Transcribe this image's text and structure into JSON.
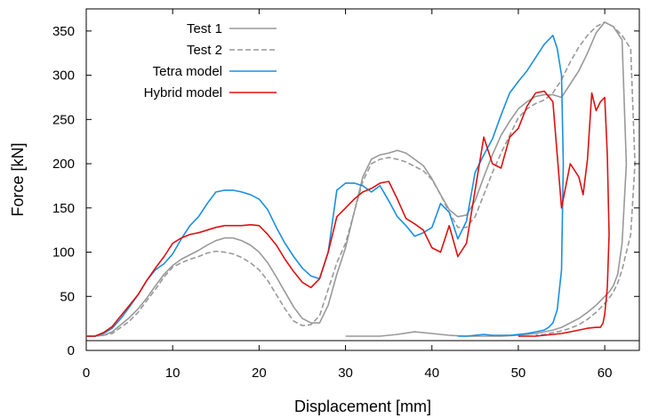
{
  "chart_data": {
    "type": "line",
    "title": "",
    "xlabel": "Displacement [mm]",
    "ylabel": "Force [kN]",
    "xlim": [
      0,
      64
    ],
    "ylim": [
      0,
      375
    ],
    "xticks": [
      0,
      10,
      20,
      30,
      40,
      50,
      60
    ],
    "yticks": [
      0,
      50,
      100,
      150,
      200,
      250,
      300,
      350
    ],
    "grid": false,
    "legend_position": "top-left",
    "series": [
      {
        "name": "Test 1",
        "color": "#999999",
        "dash": "solid",
        "x": [
          0,
          1,
          2,
          3,
          4,
          5,
          6,
          7,
          8,
          9,
          10,
          11,
          12,
          13,
          14,
          15,
          16,
          17,
          18,
          19,
          20,
          21,
          22,
          23,
          24,
          25,
          26,
          27,
          28,
          29,
          30,
          31,
          32,
          33,
          34,
          35,
          36,
          37,
          38,
          39,
          40,
          41,
          42,
          43,
          44,
          45,
          46,
          47,
          48,
          49,
          50,
          51,
          52,
          53,
          54,
          55,
          56,
          57,
          58,
          59,
          60,
          61,
          62,
          62.5,
          62,
          61.5,
          61,
          60.5,
          60,
          59,
          58,
          57,
          56,
          55,
          54,
          53,
          52,
          51,
          50,
          48,
          46,
          44,
          42,
          40,
          38,
          36,
          34,
          32,
          30
        ],
        "y": [
          5,
          5,
          6,
          10,
          18,
          26,
          36,
          48,
          62,
          75,
          85,
          92,
          97,
          102,
          108,
          113,
          116,
          116,
          113,
          108,
          100,
          88,
          72,
          55,
          38,
          25,
          20,
          20,
          40,
          75,
          105,
          145,
          185,
          205,
          210,
          212,
          215,
          212,
          205,
          198,
          183,
          165,
          148,
          140,
          142,
          158,
          185,
          210,
          232,
          248,
          262,
          270,
          276,
          278,
          278,
          275,
          290,
          305,
          325,
          348,
          360,
          355,
          340,
          200,
          110,
          75,
          62,
          55,
          50,
          40,
          32,
          25,
          20,
          15,
          12,
          10,
          8,
          7,
          6,
          5,
          5,
          5,
          6,
          8,
          10,
          7,
          5,
          5,
          5
        ]
      },
      {
        "name": "Test 2",
        "color": "#999999",
        "dash": "dashed",
        "x": [
          0,
          1,
          2,
          3,
          4,
          5,
          6,
          7,
          8,
          9,
          10,
          11,
          12,
          13,
          14,
          15,
          16,
          17,
          18,
          19,
          20,
          21,
          22,
          23,
          24,
          25,
          26,
          27,
          28,
          29,
          30,
          31,
          32,
          33,
          34,
          35,
          36,
          37,
          38,
          39,
          40,
          41,
          42,
          43,
          44,
          45,
          46,
          47,
          48,
          49,
          50,
          51,
          52,
          53,
          54,
          55,
          56,
          57,
          58,
          59,
          60,
          61,
          62,
          63,
          63.5,
          63,
          62,
          61.5,
          61,
          60.5,
          60,
          59,
          58,
          57,
          56,
          55,
          54,
          53,
          52
        ],
        "y": [
          5,
          5,
          6,
          8,
          15,
          22,
          32,
          45,
          58,
          72,
          83,
          88,
          92,
          95,
          99,
          101,
          100,
          98,
          94,
          88,
          80,
          68,
          52,
          36,
          22,
          17,
          18,
          28,
          58,
          88,
          110,
          145,
          180,
          200,
          205,
          207,
          205,
          202,
          197,
          192,
          182,
          165,
          145,
          128,
          128,
          140,
          165,
          190,
          212,
          232,
          252,
          262,
          268,
          272,
          280,
          295,
          315,
          332,
          345,
          355,
          360,
          355,
          345,
          330,
          200,
          120,
          80,
          65,
          55,
          48,
          42,
          32,
          24,
          18,
          14,
          11,
          9,
          7,
          6
        ]
      },
      {
        "name": "Tetra model",
        "color": "#1a8fe0",
        "dash": "solid",
        "x": [
          0,
          1,
          2,
          3,
          4,
          5,
          6,
          7,
          8,
          9,
          10,
          11,
          12,
          13,
          14,
          15,
          16,
          17,
          18,
          19,
          20,
          21,
          22,
          23,
          24,
          25,
          26,
          27,
          28,
          29,
          30,
          31,
          32,
          33,
          34,
          35,
          36,
          37,
          38,
          39,
          40,
          41,
          42,
          43,
          44,
          45,
          46,
          47,
          48,
          49,
          50,
          51,
          52,
          53,
          54,
          54.5,
          55,
          55.2,
          55,
          54.5,
          54,
          53.5,
          53,
          52,
          51,
          50,
          49,
          48,
          47,
          46,
          45,
          44,
          43
        ],
        "y": [
          5,
          5,
          8,
          14,
          25,
          38,
          52,
          68,
          80,
          87,
          98,
          115,
          130,
          140,
          155,
          168,
          170,
          170,
          168,
          165,
          160,
          148,
          128,
          110,
          95,
          82,
          73,
          70,
          100,
          170,
          178,
          178,
          175,
          168,
          175,
          158,
          140,
          130,
          118,
          122,
          128,
          155,
          145,
          115,
          135,
          190,
          210,
          228,
          255,
          280,
          293,
          305,
          320,
          335,
          345,
          330,
          300,
          200,
          80,
          35,
          20,
          15,
          12,
          10,
          8,
          7,
          6,
          6,
          6,
          7,
          6,
          5,
          5
        ]
      },
      {
        "name": "Hybrid model",
        "color": "#dd1111",
        "dash": "solid",
        "x": [
          0,
          1,
          2,
          3,
          4,
          5,
          6,
          7,
          8,
          9,
          10,
          11,
          12,
          13,
          14,
          15,
          16,
          17,
          18,
          19,
          20,
          21,
          22,
          23,
          24,
          25,
          26,
          27,
          28,
          29,
          30,
          31,
          32,
          33,
          34,
          35,
          36,
          37,
          38,
          39,
          40,
          41,
          42,
          43,
          44,
          45,
          46,
          47,
          48,
          49,
          50,
          51,
          52,
          53,
          54,
          55,
          56,
          57,
          57.5,
          58,
          58.5,
          59,
          59.5,
          60,
          60.3,
          60.5,
          60.3,
          60,
          59.8,
          59.5,
          59,
          58,
          57,
          56,
          55,
          54,
          53,
          52,
          51,
          50
        ],
        "y": [
          5,
          5,
          9,
          16,
          28,
          40,
          52,
          68,
          82,
          95,
          110,
          116,
          120,
          122,
          125,
          128,
          130,
          130,
          130,
          131,
          130,
          120,
          108,
          92,
          78,
          66,
          60,
          70,
          100,
          140,
          150,
          160,
          168,
          172,
          178,
          180,
          160,
          138,
          132,
          125,
          105,
          100,
          130,
          95,
          110,
          170,
          230,
          200,
          195,
          230,
          240,
          265,
          280,
          282,
          270,
          150,
          200,
          185,
          165,
          205,
          280,
          260,
          270,
          275,
          210,
          120,
          60,
          30,
          20,
          15,
          15,
          14,
          12,
          10,
          8,
          7,
          6,
          5,
          5,
          5
        ]
      }
    ]
  }
}
